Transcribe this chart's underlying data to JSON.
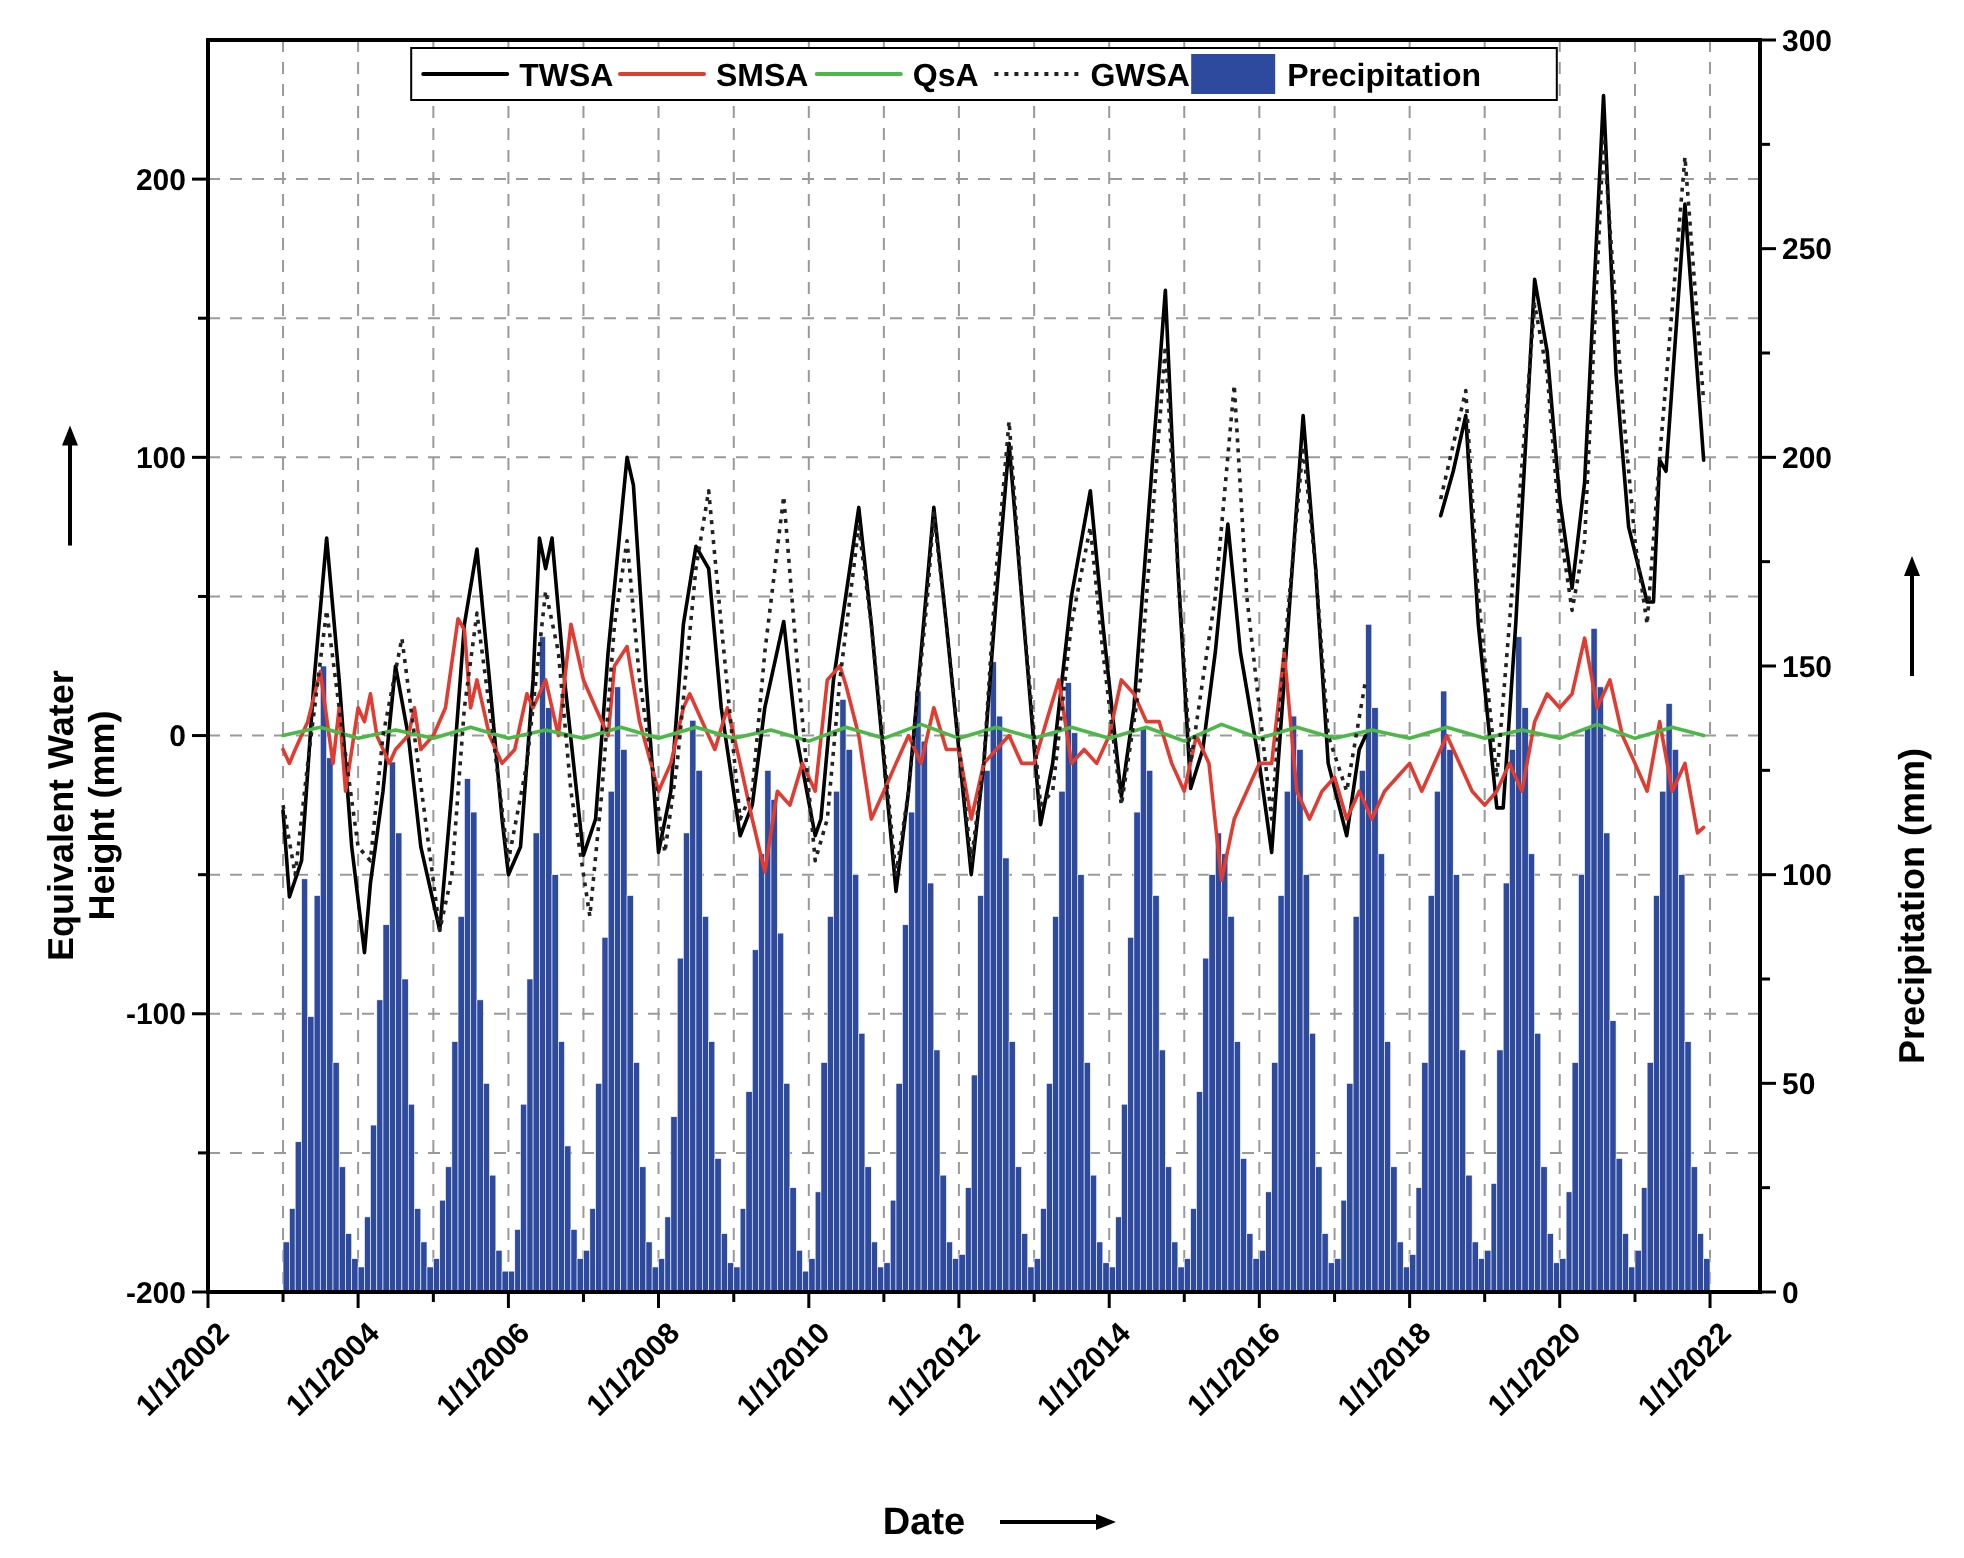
{
  "chart_data": {
    "type": "line",
    "xlabel": "Date",
    "ylabel": "Equivalent Water Height (mm)",
    "y2label": "Precipitation (mm)",
    "xlim": [
      "2002-01-01",
      "2022-09-01"
    ],
    "xticks": [
      {
        "value": "2002-01-01",
        "label": "1/1/2002"
      },
      {
        "value": "2003-01-01",
        "label": null
      },
      {
        "value": "2004-01-01",
        "label": "1/1/2004"
      },
      {
        "value": "2005-01-01",
        "label": null
      },
      {
        "value": "2006-01-01",
        "label": "1/1/2006"
      },
      {
        "value": "2007-01-01",
        "label": null
      },
      {
        "value": "2008-01-01",
        "label": "1/1/2008"
      },
      {
        "value": "2009-01-01",
        "label": null
      },
      {
        "value": "2010-01-01",
        "label": "1/1/2010"
      },
      {
        "value": "2011-01-01",
        "label": null
      },
      {
        "value": "2012-01-01",
        "label": "1/1/2012"
      },
      {
        "value": "2013-01-01",
        "label": null
      },
      {
        "value": "2014-01-01",
        "label": "1/1/2014"
      },
      {
        "value": "2015-01-01",
        "label": null
      },
      {
        "value": "2016-01-01",
        "label": "1/1/2016"
      },
      {
        "value": "2017-01-01",
        "label": null
      },
      {
        "value": "2018-01-01",
        "label": "1/1/2018"
      },
      {
        "value": "2019-01-01",
        "label": null
      },
      {
        "value": "2020-01-01",
        "label": "1/1/2020"
      },
      {
        "value": "2021-01-01",
        "label": null
      },
      {
        "value": "2022-01-01",
        "label": "1/1/2022"
      }
    ],
    "ylim": [
      -200,
      250
    ],
    "yticks": [
      -200,
      {
        "value": -150,
        "label": null
      },
      -100,
      {
        "value": -50,
        "label": null
      },
      0,
      {
        "value": 50,
        "label": null
      },
      100,
      {
        "value": 150,
        "label": null
      },
      200
    ],
    "y2lim": [
      0,
      300
    ],
    "y2ticks": [
      0,
      {
        "value": 25,
        "label": null
      },
      50,
      {
        "value": 75,
        "label": null
      },
      100,
      {
        "value": 125,
        "label": null
      },
      150,
      {
        "value": 175,
        "label": null
      },
      200,
      {
        "value": 225,
        "label": null
      },
      250,
      {
        "value": 275,
        "label": null
      },
      300
    ],
    "grid": true,
    "legend": "top",
    "series": [
      {
        "name": "Precipitation",
        "type": "bar",
        "axis": "y2",
        "color": "#2e4a9e",
        "x": [
          "2003-01",
          "2003-02",
          "2003-03",
          "2003-04",
          "2003-05",
          "2003-06",
          "2003-07",
          "2003-08",
          "2003-09",
          "2003-10",
          "2003-11",
          "2003-12",
          "2004-01",
          "2004-02",
          "2004-03",
          "2004-04",
          "2004-05",
          "2004-06",
          "2004-07",
          "2004-08",
          "2004-09",
          "2004-10",
          "2004-11",
          "2004-12",
          "2005-01",
          "2005-02",
          "2005-03",
          "2005-04",
          "2005-05",
          "2005-06",
          "2005-07",
          "2005-08",
          "2005-09",
          "2005-10",
          "2005-11",
          "2005-12",
          "2006-01",
          "2006-02",
          "2006-03",
          "2006-04",
          "2006-05",
          "2006-06",
          "2006-07",
          "2006-08",
          "2006-09",
          "2006-10",
          "2006-11",
          "2006-12",
          "2007-01",
          "2007-02",
          "2007-03",
          "2007-04",
          "2007-05",
          "2007-06",
          "2007-07",
          "2007-08",
          "2007-09",
          "2007-10",
          "2007-11",
          "2007-12",
          "2008-01",
          "2008-02",
          "2008-03",
          "2008-04",
          "2008-05",
          "2008-06",
          "2008-07",
          "2008-08",
          "2008-09",
          "2008-10",
          "2008-11",
          "2008-12",
          "2009-01",
          "2009-02",
          "2009-03",
          "2009-04",
          "2009-05",
          "2009-06",
          "2009-07",
          "2009-08",
          "2009-09",
          "2009-10",
          "2009-11",
          "2009-12",
          "2010-01",
          "2010-02",
          "2010-03",
          "2010-04",
          "2010-05",
          "2010-06",
          "2010-07",
          "2010-08",
          "2010-09",
          "2010-10",
          "2010-11",
          "2010-12",
          "2011-01",
          "2011-02",
          "2011-03",
          "2011-04",
          "2011-05",
          "2011-06",
          "2011-07",
          "2011-08",
          "2011-09",
          "2011-10",
          "2011-11",
          "2011-12",
          "2012-01",
          "2012-02",
          "2012-03",
          "2012-04",
          "2012-05",
          "2012-06",
          "2012-07",
          "2012-08",
          "2012-09",
          "2012-10",
          "2012-11",
          "2012-12",
          "2013-01",
          "2013-02",
          "2013-03",
          "2013-04",
          "2013-05",
          "2013-06",
          "2013-07",
          "2013-08",
          "2013-09",
          "2013-10",
          "2013-11",
          "2013-12",
          "2014-01",
          "2014-02",
          "2014-03",
          "2014-04",
          "2014-05",
          "2014-06",
          "2014-07",
          "2014-08",
          "2014-09",
          "2014-10",
          "2014-11",
          "2014-12",
          "2015-01",
          "2015-02",
          "2015-03",
          "2015-04",
          "2015-05",
          "2015-06",
          "2015-07",
          "2015-08",
          "2015-09",
          "2015-10",
          "2015-11",
          "2015-12",
          "2016-01",
          "2016-02",
          "2016-03",
          "2016-04",
          "2016-05",
          "2016-06",
          "2016-07",
          "2016-08",
          "2016-09",
          "2016-10",
          "2016-11",
          "2016-12",
          "2017-01",
          "2017-02",
          "2017-03",
          "2017-04",
          "2017-05",
          "2017-06",
          "2017-07",
          "2017-08",
          "2017-09",
          "2017-10",
          "2017-11",
          "2017-12",
          "2018-01",
          "2018-02",
          "2018-03",
          "2018-04",
          "2018-05",
          "2018-06",
          "2018-07",
          "2018-08",
          "2018-09",
          "2018-10",
          "2018-11",
          "2018-12",
          "2019-01",
          "2019-02",
          "2019-03",
          "2019-04",
          "2019-05",
          "2019-06",
          "2019-07",
          "2019-08",
          "2019-09",
          "2019-10",
          "2019-11",
          "2019-12",
          "2020-01",
          "2020-02",
          "2020-03",
          "2020-04",
          "2020-05",
          "2020-06",
          "2020-07",
          "2020-08",
          "2020-09",
          "2020-10",
          "2020-11",
          "2020-12",
          "2021-01",
          "2021-02",
          "2021-03",
          "2021-04",
          "2021-05",
          "2021-06",
          "2021-07",
          "2021-08",
          "2021-09",
          "2021-10",
          "2021-11",
          "2021-12"
        ],
        "values": [
          12,
          20,
          36,
          99,
          66,
          95,
          150,
          128,
          55,
          30,
          14,
          8,
          6,
          18,
          40,
          70,
          88,
          127,
          110,
          75,
          45,
          20,
          12,
          6,
          8,
          22,
          30,
          60,
          90,
          123,
          115,
          70,
          50,
          28,
          10,
          5,
          5,
          15,
          45,
          75,
          110,
          157,
          140,
          100,
          60,
          35,
          15,
          8,
          10,
          20,
          50,
          85,
          120,
          145,
          130,
          95,
          55,
          30,
          12,
          6,
          8,
          18,
          42,
          80,
          110,
          137,
          125,
          90,
          60,
          32,
          14,
          7,
          6,
          20,
          48,
          82,
          105,
          125,
          118,
          86,
          50,
          25,
          10,
          5,
          8,
          24,
          55,
          90,
          120,
          142,
          130,
          100,
          62,
          30,
          12,
          6,
          7,
          22,
          50,
          88,
          115,
          144,
          132,
          98,
          58,
          28,
          12,
          8,
          9,
          25,
          52,
          95,
          125,
          151,
          138,
          104,
          60,
          30,
          14,
          6,
          8,
          20,
          50,
          90,
          120,
          146,
          134,
          100,
          55,
          28,
          12,
          7,
          6,
          18,
          45,
          85,
          115,
          135,
          125,
          95,
          58,
          30,
          12,
          6,
          8,
          20,
          48,
          80,
          100,
          110,
          105,
          90,
          60,
          32,
          14,
          8,
          10,
          24,
          55,
          95,
          120,
          138,
          130,
          100,
          62,
          30,
          14,
          7,
          8,
          22,
          50,
          90,
          125,
          160,
          140,
          105,
          60,
          30,
          12,
          6,
          9,
          25,
          55,
          95,
          120,
          144,
          130,
          100,
          58,
          28,
          12,
          8,
          10,
          26,
          58,
          98,
          130,
          157,
          140,
          105,
          62,
          30,
          14,
          7,
          8,
          24,
          55,
          100,
          135,
          159,
          145,
          110,
          65,
          32,
          14,
          6,
          10,
          25,
          55,
          95,
          120,
          141,
          130,
          100,
          60,
          30,
          14,
          8
        ]
      },
      {
        "name": "TWSA",
        "color": "#000000",
        "x": [
          "2003-01",
          "2003-02",
          "2003-04",
          "2003-06",
          "2003-08",
          "2003-10",
          "2003-12",
          "2004-02",
          "2004-03",
          "2004-05",
          "2004-07",
          "2004-09",
          "2004-11",
          "2005-02",
          "2005-04",
          "2005-06",
          "2005-08",
          "2005-10",
          "2005-12",
          "2006-01",
          "2006-03",
          "2006-05",
          "2006-06",
          "2006-07",
          "2006-08",
          "2006-10",
          "2007-01",
          "2007-03",
          "2007-05",
          "2007-08",
          "2007-09",
          "2007-11",
          "2008-01",
          "2008-03",
          "2008-05",
          "2008-07",
          "2008-09",
          "2008-11",
          "2009-02",
          "2009-04",
          "2009-06",
          "2009-09",
          "2009-11",
          "2010-02",
          "2010-03",
          "2010-05",
          "2010-09",
          "2010-11",
          "2011-03",
          "2011-05",
          "2011-07",
          "2011-09",
          "2011-11",
          "2012-03",
          "2012-05",
          "2012-07",
          "2012-09",
          "2012-11",
          "2013-02",
          "2013-04",
          "2013-07",
          "2013-10",
          "2013-12",
          "2014-03",
          "2014-05",
          "2014-08",
          "2014-10",
          "2014-12",
          "2015-02",
          "2015-04",
          "2015-06",
          "2015-08",
          "2015-10",
          "2016-01",
          "2016-03",
          "2016-05",
          "2016-08",
          "2016-10",
          "2016-12",
          "2017-03",
          "2017-05",
          "2017-06",
          "2017-12",
          "2018-06",
          "2018-08",
          "2018-10",
          "2018-12",
          "2019-03",
          "2019-04",
          "2019-06",
          "2019-09",
          "2019-11",
          "2020-01",
          "2020-03",
          "2020-05",
          "2020-08",
          "2020-10",
          "2020-12",
          "2021-03",
          "2021-04",
          "2021-05",
          "2021-06",
          "2021-09",
          "2021-12"
        ],
        "values": [
          -27,
          -58,
          -45,
          20,
          71,
          20,
          -40,
          -78,
          -53,
          -20,
          25,
          0,
          -40,
          -70,
          -20,
          40,
          67,
          20,
          -30,
          -50,
          -40,
          20,
          71,
          60,
          71,
          20,
          -43,
          -30,
          30,
          100,
          90,
          20,
          -42,
          -20,
          40,
          68,
          60,
          10,
          -36,
          -25,
          10,
          41,
          0,
          -36,
          -30,
          20,
          82,
          40,
          -56,
          -20,
          30,
          82,
          40,
          -50,
          -10,
          50,
          105,
          50,
          -32,
          -10,
          50,
          88,
          40,
          -22,
          10,
          100,
          160,
          60,
          -19,
          -5,
          30,
          76,
          30,
          -10,
          -42,
          20,
          115,
          60,
          -10,
          -36,
          -5,
          0,
          null,
          79,
          95,
          115,
          40,
          -26,
          -26,
          40,
          164,
          138,
          85,
          53,
          91,
          230,
          130,
          75,
          48,
          48,
          99,
          95,
          191,
          99
        ]
      },
      {
        "name": "SMSA",
        "color": "#e03c31",
        "x": [
          "2003-01",
          "2003-02",
          "2003-03",
          "2003-05",
          "2003-07",
          "2003-09",
          "2003-10",
          "2003-11",
          "2004-01",
          "2004-02",
          "2004-03",
          "2004-04",
          "2004-06",
          "2004-07",
          "2004-09",
          "2004-10",
          "2004-11",
          "2005-01",
          "2005-03",
          "2005-05",
          "2005-06",
          "2005-07",
          "2005-08",
          "2005-10",
          "2005-12",
          "2006-02",
          "2006-04",
          "2006-05",
          "2006-07",
          "2006-09",
          "2006-11",
          "2007-01",
          "2007-03",
          "2007-05",
          "2007-06",
          "2007-08",
          "2007-10",
          "2008-01",
          "2008-03",
          "2008-05",
          "2008-06",
          "2008-08",
          "2008-10",
          "2008-12",
          "2009-02",
          "2009-04",
          "2009-06",
          "2009-08",
          "2009-10",
          "2009-12",
          "2010-02",
          "2010-04",
          "2010-06",
          "2010-07",
          "2010-09",
          "2010-11",
          "2011-01",
          "2011-03",
          "2011-05",
          "2011-07",
          "2011-09",
          "2011-11",
          "2012-01",
          "2012-03",
          "2012-05",
          "2012-07",
          "2012-09",
          "2012-11",
          "2013-01",
          "2013-03",
          "2013-05",
          "2013-07",
          "2013-09",
          "2013-11",
          "2014-01",
          "2014-03",
          "2014-05",
          "2014-07",
          "2014-09",
          "2014-11",
          "2015-01",
          "2015-03",
          "2015-05",
          "2015-07",
          "2015-09",
          "2015-11",
          "2016-01",
          "2016-03",
          "2016-05",
          "2016-07",
          "2016-09",
          "2016-11",
          "2017-01",
          "2017-03",
          "2017-05",
          "2017-07",
          "2017-09",
          "2017-11",
          "2018-01",
          "2018-03",
          "2018-05",
          "2018-07",
          "2018-09",
          "2018-11",
          "2019-01",
          "2019-03",
          "2019-05",
          "2019-07",
          "2019-09",
          "2019-11",
          "2020-01",
          "2020-03",
          "2020-05",
          "2020-07",
          "2020-09",
          "2020-11",
          "2021-01",
          "2021-03",
          "2021-05",
          "2021-07",
          "2021-09",
          "2021-11",
          "2021-12"
        ],
        "values": [
          -5,
          -10,
          -5,
          5,
          23,
          -10,
          10,
          -20,
          10,
          5,
          15,
          0,
          -10,
          -5,
          0,
          10,
          -5,
          0,
          10,
          42,
          38,
          10,
          20,
          0,
          -10,
          -5,
          15,
          10,
          20,
          0,
          40,
          20,
          10,
          0,
          25,
          32,
          5,
          -20,
          -10,
          10,
          15,
          5,
          -5,
          10,
          -10,
          -30,
          -49,
          -20,
          -25,
          -10,
          -20,
          20,
          25,
          18,
          0,
          -30,
          -20,
          -10,
          0,
          -10,
          10,
          -5,
          -5,
          -30,
          -10,
          -5,
          0,
          -10,
          -10,
          5,
          20,
          -10,
          -5,
          -10,
          0,
          20,
          15,
          5,
          5,
          -10,
          -20,
          0,
          -10,
          -52,
          -30,
          -20,
          -10,
          -10,
          30,
          -20,
          -30,
          -20,
          -15,
          -30,
          -20,
          -30,
          -20,
          -15,
          -10,
          -20,
          -10,
          0,
          -10,
          -20,
          -25,
          -20,
          -10,
          -20,
          5,
          15,
          10,
          15,
          35,
          10,
          20,
          0,
          -10,
          -20,
          5,
          -20,
          -10,
          -35,
          -33
        ]
      },
      {
        "name": "QsA",
        "color": "#4cb848",
        "x": [
          "2003-01",
          "2003-07",
          "2004-01",
          "2004-07",
          "2005-01",
          "2005-07",
          "2006-01",
          "2006-07",
          "2007-01",
          "2007-07",
          "2008-01",
          "2008-07",
          "2009-01",
          "2009-07",
          "2010-01",
          "2010-07",
          "2011-01",
          "2011-07",
          "2012-01",
          "2012-07",
          "2013-01",
          "2013-07",
          "2014-01",
          "2014-07",
          "2015-01",
          "2015-07",
          "2016-01",
          "2016-07",
          "2017-01",
          "2017-07",
          "2018-01",
          "2018-07",
          "2019-01",
          "2019-07",
          "2020-01",
          "2020-07",
          "2021-01",
          "2021-07",
          "2021-12"
        ],
        "values": [
          0,
          3,
          -1,
          2,
          -1,
          3,
          -1,
          2,
          -1,
          3,
          -1,
          3,
          -1,
          2,
          -2,
          3,
          -1,
          4,
          -1,
          3,
          -1,
          3,
          -1,
          3,
          -2,
          4,
          -1,
          3,
          -1,
          2,
          -1,
          3,
          -1,
          2,
          -1,
          4,
          -1,
          3,
          0
        ]
      },
      {
        "name": "GWSA",
        "color": "#222222",
        "line_style": "dotted",
        "x": [
          "2003-01",
          "2003-03",
          "2003-05",
          "2003-08",
          "2003-10",
          "2004-01",
          "2004-03",
          "2004-05",
          "2004-08",
          "2004-10",
          "2005-02",
          "2005-04",
          "2005-06",
          "2005-08",
          "2005-10",
          "2006-01",
          "2006-04",
          "2006-07",
          "2006-09",
          "2006-11",
          "2007-02",
          "2007-04",
          "2007-06",
          "2007-08",
          "2007-10",
          "2008-02",
          "2008-04",
          "2008-07",
          "2008-09",
          "2008-11",
          "2009-02",
          "2009-04",
          "2009-06",
          "2009-09",
          "2009-11",
          "2010-02",
          "2010-04",
          "2010-06",
          "2010-09",
          "2010-11",
          "2011-03",
          "2011-05",
          "2011-08",
          "2011-09",
          "2011-11",
          "2012-03",
          "2012-05",
          "2012-07",
          "2012-09",
          "2012-11",
          "2013-02",
          "2013-04",
          "2013-07",
          "2013-10",
          "2013-12",
          "2014-03",
          "2014-06",
          "2014-10",
          "2014-12",
          "2015-02",
          "2015-04",
          "2015-06",
          "2015-09",
          "2015-11",
          "2016-01",
          "2016-03",
          "2016-05",
          "2016-08",
          "2016-10",
          "2016-12",
          "2017-03",
          "2017-06",
          "2017-12",
          "2018-06",
          "2018-10",
          "2018-12",
          "2019-03",
          "2019-05",
          "2019-09",
          "2019-11",
          "2020-01",
          "2020-03",
          "2020-05",
          "2020-08",
          "2020-11",
          "2021-01",
          "2021-03",
          "2021-05",
          "2021-09",
          "2021-12"
        ],
        "values": [
          -25,
          -50,
          -10,
          45,
          10,
          -40,
          -45,
          0,
          35,
          0,
          -70,
          -50,
          10,
          44,
          10,
          -45,
          -10,
          52,
          30,
          -20,
          -65,
          -20,
          40,
          70,
          20,
          -42,
          -10,
          60,
          88,
          40,
          -30,
          -20,
          30,
          86,
          30,
          -45,
          -30,
          20,
          75,
          40,
          -50,
          -20,
          50,
          80,
          40,
          -45,
          -10,
          60,
          113,
          50,
          -25,
          -20,
          40,
          75,
          30,
          -25,
          20,
          140,
          60,
          -10,
          20,
          50,
          126,
          50,
          10,
          -30,
          30,
          104,
          60,
          0,
          -20,
          20,
          null,
          85,
          124,
          50,
          -15,
          40,
          155,
          130,
          75,
          45,
          70,
          215,
          120,
          70,
          40,
          100,
          208,
          120
        ]
      }
    ]
  }
}
